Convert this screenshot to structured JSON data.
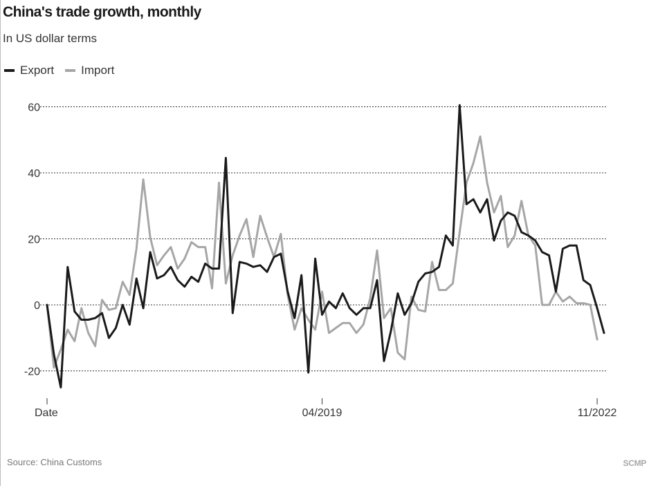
{
  "title": "China's trade growth, monthly",
  "subtitle": "In US dollar terms",
  "source": "Source: China Customs",
  "brand": "SCMP",
  "legend": {
    "export": "Export",
    "import": "Import"
  },
  "colors": {
    "export": "#1a1a1a",
    "import": "#a6a6a6",
    "grid": "#333333"
  },
  "chart_data": {
    "type": "line",
    "ylim": [
      -28,
      62
    ],
    "yticks": [
      60,
      40,
      20,
      0,
      -20
    ],
    "xticks": [
      {
        "index": 0,
        "label": "Date"
      },
      {
        "index": 40,
        "label": "04/2019"
      },
      {
        "index": 80,
        "label": "11/2022"
      }
    ],
    "grid": true,
    "legend_position": "top-left",
    "series": [
      {
        "name": "Export",
        "values": [
          0,
          -15,
          -25,
          11.5,
          -2,
          -4.5,
          -4.5,
          -4,
          -2.5,
          -10,
          -7,
          0,
          -6,
          8,
          -1,
          16,
          8,
          9,
          11.5,
          7.5,
          5.5,
          8.5,
          7,
          12.5,
          11,
          11,
          44.5,
          -2.5,
          13,
          12.5,
          11.5,
          12,
          10,
          14.5,
          15.5,
          4,
          -4,
          9,
          -20.5,
          14,
          -3,
          1,
          -1,
          3.5,
          -1,
          -3,
          -1,
          -1,
          7.5,
          -17,
          -8,
          3.5,
          -3,
          0.5,
          7,
          9.5,
          10,
          11.5,
          21,
          18,
          60.5,
          30.5,
          32,
          28,
          32,
          19.5,
          25.5,
          28,
          27,
          22,
          21,
          19.5,
          16,
          15,
          4,
          17,
          18,
          18,
          7.5,
          6,
          -1,
          -8.5
        ]
      },
      {
        "name": "Import",
        "values": [
          0,
          -19,
          -13.5,
          -7.5,
          -11,
          -1,
          -8.5,
          -12.5,
          1.5,
          -1.5,
          -1,
          7,
          3,
          17,
          38,
          20.5,
          12,
          15,
          17.5,
          11,
          14,
          19,
          17.5,
          17.5,
          5,
          37,
          6.5,
          15,
          21,
          26,
          14.5,
          27,
          20.5,
          14.5,
          21.5,
          3,
          -7.5,
          -1,
          -4.5,
          -7.5,
          4,
          -8.5,
          -7,
          -5.5,
          -5.5,
          -8.5,
          -6,
          2,
          16.5,
          -4,
          -1,
          -14.5,
          -16.5,
          2.5,
          -1.5,
          -2,
          13,
          4.5,
          4.5,
          6.5,
          22,
          37,
          43,
          51,
          37,
          28,
          33,
          17.5,
          21,
          31.5,
          21,
          18,
          0,
          0,
          4,
          1,
          2.5,
          0.5,
          0.5,
          0,
          -10.5
        ]
      }
    ]
  }
}
